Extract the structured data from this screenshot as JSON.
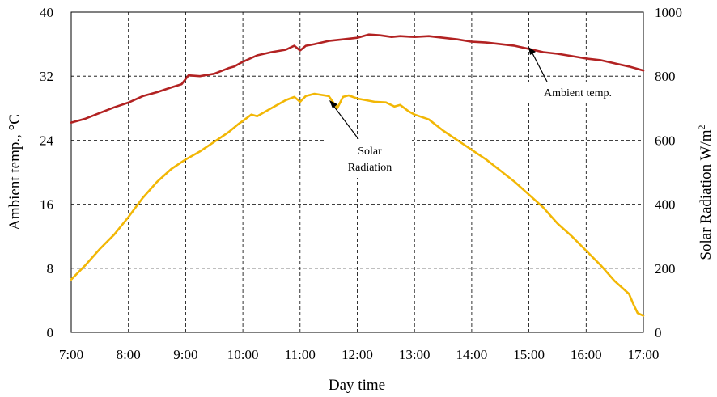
{
  "chart_data": {
    "type": "line",
    "xlabel": "Day time",
    "ylabel_left": "Ambient temp.,",
    "ylabel_left_unit": "°C",
    "ylabel_right": "Solar Radiation W/m",
    "ylabel_right_sup": "2",
    "x_ticks": [
      "7:00",
      "8:00",
      "9:00",
      "10:00",
      "11:00",
      "12:00",
      "13:00",
      "14:00",
      "15:00",
      "16:00",
      "17:00"
    ],
    "y_left_ticks": [
      "0",
      "8",
      "16",
      "24",
      "32",
      "40"
    ],
    "y_right_ticks": [
      "0",
      "200",
      "400",
      "600",
      "800",
      "1000"
    ],
    "y_left_lim": [
      0,
      40
    ],
    "y_right_lim": [
      0,
      1000
    ],
    "grid": true,
    "annotations": {
      "ambient": "Ambient temp.",
      "solar_line1": "Solar",
      "solar_line2": "Radiation"
    },
    "series": [
      {
        "axis": "left",
        "color": "#b22222",
        "x": [
          7.0,
          7.25,
          7.5,
          7.75,
          8.0,
          8.25,
          8.5,
          8.75,
          8.93,
          9.05,
          9.25,
          9.5,
          9.75,
          9.85,
          10.0,
          10.25,
          10.5,
          10.75,
          10.9,
          11.0,
          11.1,
          11.25,
          11.5,
          11.75,
          12.0,
          12.2,
          12.4,
          12.6,
          12.75,
          13.0,
          13.25,
          13.5,
          13.75,
          14.0,
          14.25,
          14.5,
          14.75,
          15.0,
          15.25,
          15.5,
          15.75,
          16.0,
          16.25,
          16.5,
          16.75,
          17.0
        ],
        "values": [
          26.2,
          26.7,
          27.4,
          28.1,
          28.7,
          29.5,
          30.0,
          30.6,
          31.0,
          32.1,
          32.0,
          32.3,
          33.0,
          33.2,
          33.8,
          34.6,
          35.0,
          35.3,
          35.8,
          35.2,
          35.8,
          36.0,
          36.4,
          36.6,
          36.8,
          37.2,
          37.1,
          36.9,
          37.0,
          36.9,
          37.0,
          36.8,
          36.6,
          36.3,
          36.2,
          36.0,
          35.8,
          35.4,
          35.0,
          34.8,
          34.5,
          34.2,
          34.0,
          33.6,
          33.2,
          32.7
        ]
      },
      {
        "axis": "right",
        "color": "#f2b705",
        "x": [
          7.0,
          7.25,
          7.5,
          7.75,
          8.0,
          8.25,
          8.5,
          8.75,
          9.0,
          9.25,
          9.5,
          9.75,
          9.92,
          10.0,
          10.15,
          10.25,
          10.5,
          10.75,
          10.9,
          11.0,
          11.1,
          11.25,
          11.5,
          11.65,
          11.75,
          11.85,
          12.0,
          12.15,
          12.3,
          12.5,
          12.65,
          12.75,
          12.9,
          13.0,
          13.25,
          13.5,
          13.75,
          14.0,
          14.25,
          14.5,
          14.75,
          15.0,
          15.25,
          15.5,
          15.75,
          16.0,
          16.25,
          16.5,
          16.75,
          16.82,
          16.9,
          17.0
        ],
        "values": [
          165,
          210,
          260,
          305,
          360,
          420,
          470,
          510,
          540,
          565,
          595,
          625,
          650,
          660,
          680,
          675,
          700,
          725,
          735,
          720,
          738,
          745,
          738,
          700,
          735,
          740,
          730,
          725,
          720,
          718,
          705,
          710,
          690,
          680,
          665,
          630,
          600,
          570,
          540,
          505,
          470,
          430,
          390,
          340,
          300,
          255,
          210,
          160,
          120,
          90,
          60,
          52
        ]
      }
    ]
  }
}
